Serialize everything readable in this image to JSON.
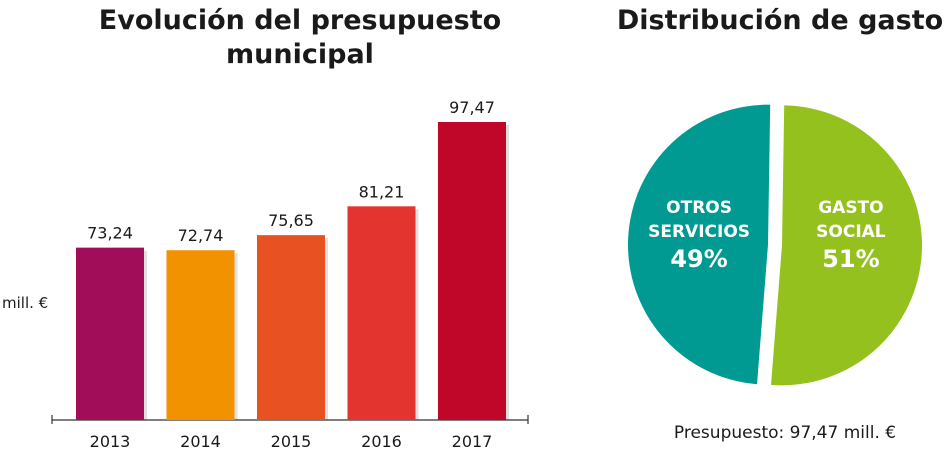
{
  "chart_data": [
    {
      "type": "bar",
      "title": "Evolución del presupuesto municipal",
      "ylabel": "mill. €",
      "categories": [
        "2013",
        "2014",
        "2015",
        "2016",
        "2017"
      ],
      "values": [
        73.24,
        72.74,
        75.65,
        81.21,
        97.47
      ],
      "value_labels": [
        "73,24",
        "72,74",
        "75,65",
        "81,21",
        "97,47"
      ],
      "colors": [
        "#a10d59",
        "#f39200",
        "#e85222",
        "#e3342f",
        "#c0072a"
      ],
      "ylim": [
        0,
        110
      ],
      "grid": false,
      "legend": "none"
    },
    {
      "type": "pie",
      "title": "Distribución de gasto",
      "slices": [
        {
          "label_line1": "GASTO",
          "label_line2": "SOCIAL",
          "pct_label": "51%",
          "value": 51,
          "color": "#95c11f"
        },
        {
          "label_line1": "OTROS",
          "label_line2": "SERVICIOS",
          "pct_label": "49%",
          "value": 49,
          "color": "#009a93"
        }
      ],
      "footnote": "Presupuesto: 97,47 mill. €",
      "legend": "none"
    }
  ]
}
